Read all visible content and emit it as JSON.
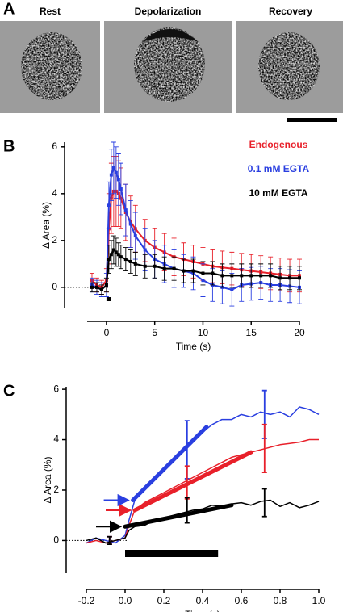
{
  "panel_a": {
    "label": "A",
    "titles": [
      "Rest",
      "Depolarization",
      "Recovery"
    ]
  },
  "chart_data": [
    {
      "type": "line",
      "label": "B",
      "x_label": "Time (s)",
      "y_label": "Δ Area (%)",
      "xlim": [
        -2,
        20
      ],
      "xticks": [
        0,
        5,
        10,
        15,
        20
      ],
      "ylim": [
        -0.9,
        6.2
      ],
      "yticks": [
        0,
        2,
        4,
        6
      ],
      "stimulus": [
        0,
        0.5
      ],
      "x": [
        -1.5,
        -1,
        -0.5,
        0,
        0.25,
        0.5,
        0.75,
        1,
        1.25,
        1.5,
        2,
        2.5,
        3,
        4,
        5,
        6,
        7,
        8,
        9,
        10,
        11,
        12,
        13,
        14,
        15,
        16,
        17,
        18,
        19,
        20
      ],
      "series": [
        {
          "name": "Endogenous",
          "color": "#e8202a",
          "values": [
            0.3,
            0.1,
            0,
            0.3,
            2.5,
            3.8,
            4.1,
            4.1,
            4,
            3.8,
            3.2,
            2.8,
            2.5,
            2,
            1.7,
            1.5,
            1.3,
            1.2,
            1.1,
            1.0,
            0.9,
            0.85,
            0.8,
            0.75,
            0.7,
            0.65,
            0.6,
            0.55,
            0.5,
            0.5
          ],
          "errors": [
            0.3,
            0.3,
            0.3,
            0.5,
            1.5,
            1.5,
            1.5,
            1.5,
            1.4,
            1.3,
            1.2,
            1.1,
            1,
            0.9,
            0.8,
            0.8,
            0.8,
            0.7,
            0.7,
            0.7,
            0.7,
            0.7,
            0.7,
            0.7,
            0.7,
            0.7,
            0.7,
            0.7,
            0.7,
            0.7
          ]
        },
        {
          "name": "0.1 mM EGTA",
          "color": "#2a3fe0",
          "values": [
            0.1,
            0,
            -0.1,
            0.1,
            3.5,
            4.8,
            5.1,
            4.9,
            4.6,
            4.2,
            3.3,
            2.7,
            2.2,
            1.6,
            1.2,
            1,
            0.8,
            0.7,
            0.6,
            0.3,
            0.1,
            0,
            -0.1,
            0.1,
            0.15,
            0.2,
            0.1,
            0.1,
            0.05,
            0
          ],
          "errors": [
            0.3,
            0.3,
            0.3,
            0.5,
            1,
            1.1,
            1.1,
            1.1,
            1.1,
            1.1,
            1.1,
            1,
            1,
            0.9,
            0.8,
            0.8,
            0.8,
            0.7,
            0.7,
            0.7,
            0.7,
            0.7,
            0.7,
            0.7,
            0.7,
            0.7,
            0.7,
            0.7,
            0.7,
            0.7
          ]
        },
        {
          "name": "10 mM EGTA",
          "color": "#000000",
          "values": [
            0,
            0,
            -0.1,
            0.1,
            1.2,
            1.4,
            1.6,
            1.5,
            1.4,
            1.3,
            1.2,
            1.1,
            1.0,
            0.9,
            0.9,
            0.8,
            0.8,
            0.7,
            0.7,
            0.6,
            0.6,
            0.5,
            0.5,
            0.5,
            0.5,
            0.5,
            0.5,
            0.4,
            0.4,
            0.4
          ],
          "errors": [
            0.2,
            0.2,
            0.2,
            0.3,
            0.6,
            0.6,
            0.6,
            0.6,
            0.5,
            0.5,
            0.5,
            0.5,
            0.5,
            0.5,
            0.5,
            0.5,
            0.5,
            0.5,
            0.5,
            0.5,
            0.5,
            0.5,
            0.5,
            0.5,
            0.5,
            0.5,
            0.5,
            0.5,
            0.5,
            0.5
          ]
        }
      ]
    },
    {
      "type": "line",
      "label": "C",
      "x_label": "Time (s)",
      "y_label": "Δ Area (%)",
      "xlim": [
        -0.2,
        1.0
      ],
      "xticks": [
        -0.2,
        {
          "value": 0,
          "label": "0.0"
        },
        0.2,
        0.4,
        0.6,
        0.8,
        {
          "value": 1,
          "label": "1.0"
        }
      ],
      "ylim": [
        -1.3,
        6.1
      ],
      "yticks": [
        0,
        2,
        4,
        6
      ],
      "stimulus": [
        0,
        0.48
      ],
      "x": [
        -0.2,
        -0.15,
        -0.1,
        -0.05,
        0,
        0.02,
        0.05,
        0.1,
        0.15,
        0.2,
        0.25,
        0.3,
        0.35,
        0.4,
        0.45,
        0.5,
        0.55,
        0.6,
        0.65,
        0.7,
        0.75,
        0.8,
        0.85,
        0.9,
        0.95,
        1.0
      ],
      "series": [
        {
          "color": "#2a3fe0",
          "values": [
            -0.1,
            0.1,
            0,
            -0.1,
            0.2,
            0.8,
            1.6,
            2.0,
            2.4,
            2.8,
            3.2,
            3.6,
            4.0,
            4.3,
            4.6,
            4.8,
            4.8,
            5.0,
            4.9,
            5.1,
            5.0,
            5.1,
            4.9,
            5.3,
            5.2,
            5.0
          ],
          "fit_x": [
            0.04,
            0.42
          ],
          "fit_values": [
            1.6,
            4.5
          ],
          "err_x": [
            -0.08,
            0.32,
            0.72
          ],
          "err_values": [
            0,
            3.6,
            5.0
          ],
          "errors": [
            0.15,
            1.15,
            0.95
          ]
        },
        {
          "color": "#e8202a",
          "values": [
            -0.1,
            0,
            -0.1,
            0,
            0.1,
            0.6,
            1.2,
            1.5,
            1.7,
            1.9,
            2.1,
            2.3,
            2.5,
            2.7,
            2.9,
            3.1,
            3.3,
            3.4,
            3.5,
            3.6,
            3.7,
            3.8,
            3.85,
            3.9,
            4.0,
            4.0
          ],
          "fit_x": [
            0.05,
            0.65
          ],
          "fit_values": [
            1.2,
            3.5
          ],
          "err_x": [
            -0.08,
            0.32,
            0.72
          ],
          "err_values": [
            0,
            2.3,
            3.65
          ],
          "errors": [
            0.15,
            0.65,
            0.95
          ]
        },
        {
          "color": "#000000",
          "values": [
            0,
            0.1,
            -0.1,
            0,
            0.1,
            0.4,
            0.55,
            0.6,
            0.8,
            0.9,
            1.0,
            1.1,
            1.2,
            1.25,
            1.4,
            1.35,
            1.45,
            1.5,
            1.4,
            1.55,
            1.6,
            1.35,
            1.5,
            1.3,
            1.4,
            1.55
          ],
          "fit_x": [
            0.0,
            0.55
          ],
          "fit_values": [
            0.55,
            1.4
          ],
          "err_x": [
            -0.08,
            0.32,
            0.72
          ],
          "err_values": [
            0,
            1.2,
            1.5
          ],
          "errors": [
            0.15,
            0.5,
            0.55
          ]
        }
      ]
    }
  ]
}
